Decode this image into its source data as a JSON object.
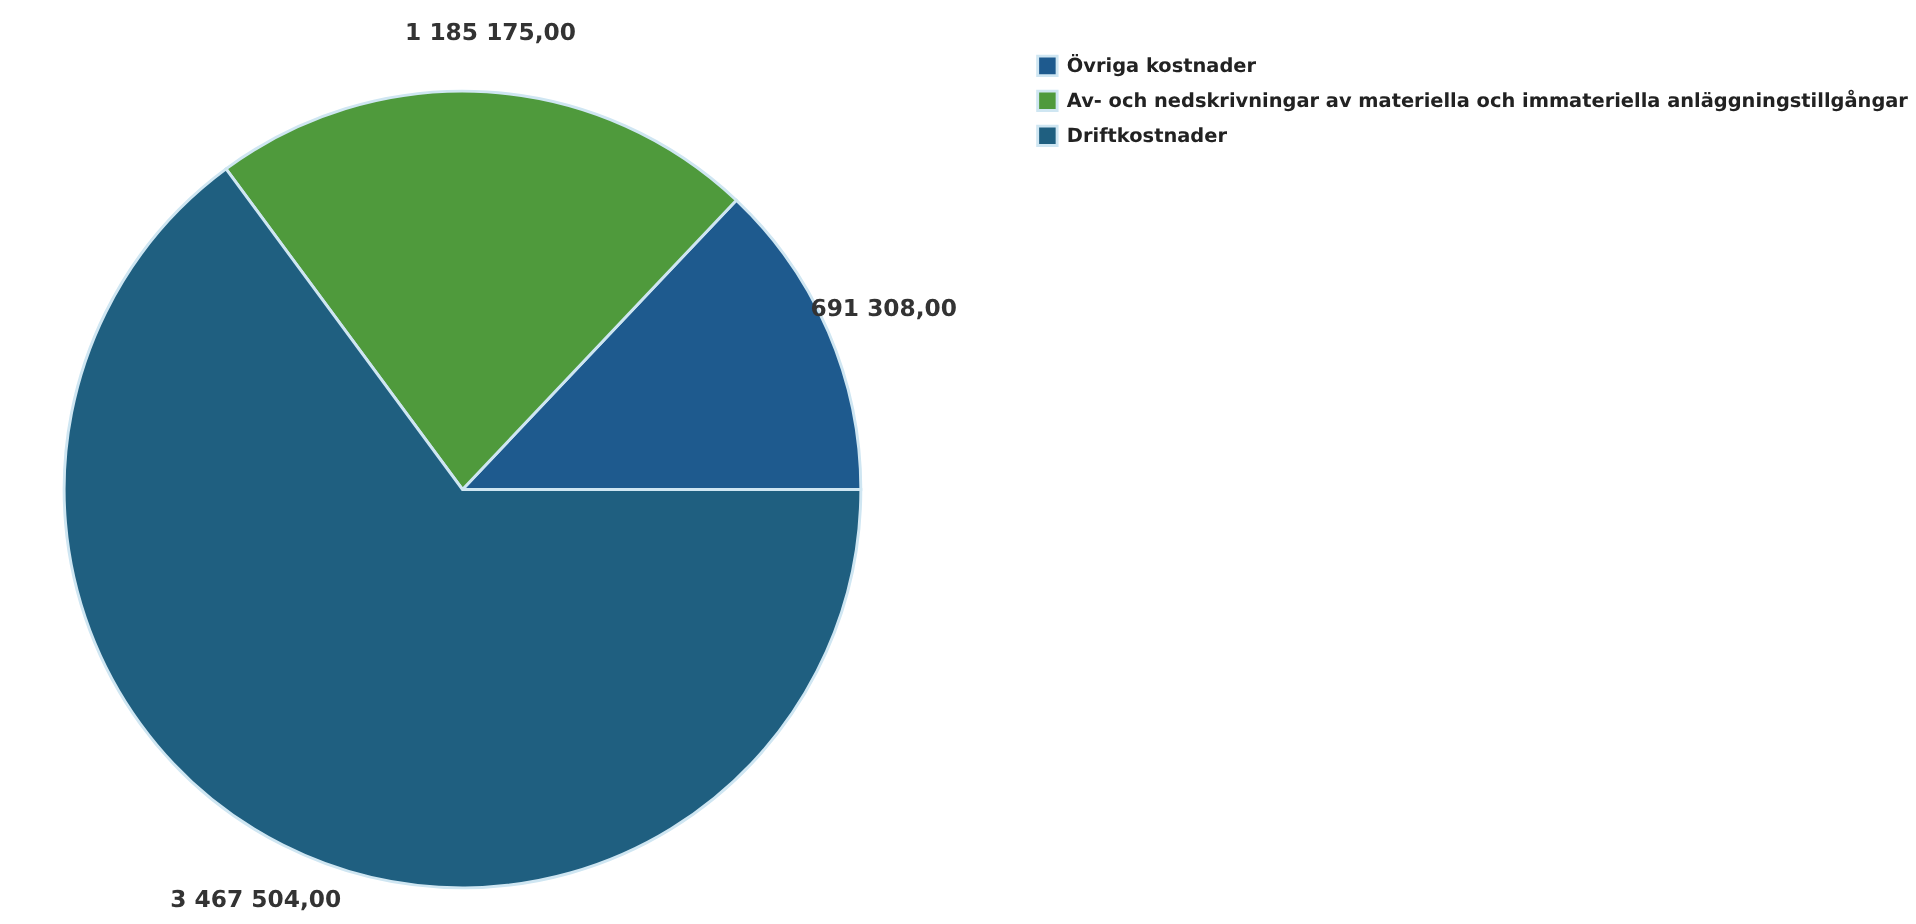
{
  "chart_data": {
    "type": "pie",
    "categories": [
      "Övriga kostnader",
      "Av- och nedskrivningar av materiella och immateriella anläggningstillgångar",
      "Driftkostnader"
    ],
    "values": [
      691308,
      1185175,
      3467504
    ],
    "value_labels": [
      "691 308,00",
      "1 185 175,00",
      "3 467 504,00"
    ],
    "colors": [
      "#1e5a8e",
      "#4f9a3c",
      "#1f5f80"
    ],
    "legend": "right"
  }
}
